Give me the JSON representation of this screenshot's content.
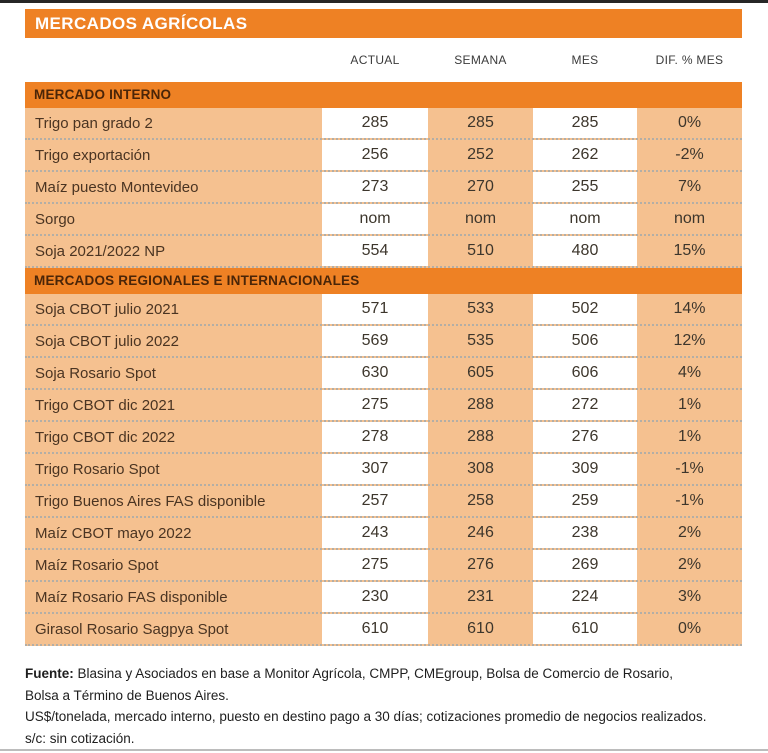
{
  "colors": {
    "orange": "#EE8124",
    "peach": "#F5C190",
    "title_text": "#FFFFFF",
    "section_text": "#4A2508"
  },
  "chart_data": {
    "type": "table",
    "title": "MERCADOS AGRÍCOLAS",
    "columns": [
      "ACTUAL",
      "SEMANA",
      "MES",
      "DIF. % MES"
    ],
    "sections": [
      {
        "header": "MERCADO INTERNO",
        "rows": [
          {
            "label": "Trigo pan grado 2",
            "actual": "285",
            "semana": "285",
            "mes": "285",
            "dif": "0%"
          },
          {
            "label": "Trigo exportación",
            "actual": "256",
            "semana": "252",
            "mes": "262",
            "dif": "-2%"
          },
          {
            "label": "Maíz puesto Montevideo",
            "actual": "273",
            "semana": "270",
            "mes": "255",
            "dif": "7%"
          },
          {
            "label": "Sorgo",
            "actual": "nom",
            "semana": "nom",
            "mes": "nom",
            "dif": "nom"
          },
          {
            "label": "Soja 2021/2022 NP",
            "actual": "554",
            "semana": "510",
            "mes": "480",
            "dif": "15%"
          }
        ]
      },
      {
        "header": "MERCADOS REGIONALES E INTERNACIONALES",
        "rows": [
          {
            "label": "Soja CBOT julio 2021",
            "actual": "571",
            "semana": "533",
            "mes": "502",
            "dif": "14%"
          },
          {
            "label": "Soja CBOT julio 2022",
            "actual": "569",
            "semana": "535",
            "mes": "506",
            "dif": "12%"
          },
          {
            "label": "Soja Rosario Spot",
            "actual": "630",
            "semana": "605",
            "mes": "606",
            "dif": "4%"
          },
          {
            "label": "Trigo CBOT dic 2021",
            "actual": "275",
            "semana": "288",
            "mes": "272",
            "dif": "1%"
          },
          {
            "label": "Trigo CBOT dic 2022",
            "actual": "278",
            "semana": "288",
            "mes": "276",
            "dif": "1%"
          },
          {
            "label": "Trigo Rosario Spot",
            "actual": "307",
            "semana": "308",
            "mes": "309",
            "dif": "-1%"
          },
          {
            "label": "Trigo Buenos Aires FAS disponible",
            "actual": "257",
            "semana": "258",
            "mes": "259",
            "dif": "-1%"
          },
          {
            "label": "Maíz CBOT mayo 2022",
            "actual": "243",
            "semana": "246",
            "mes": "238",
            "dif": "2%"
          },
          {
            "label": "Maíz Rosario Spot",
            "actual": "275",
            "semana": "276",
            "mes": "269",
            "dif": "2%"
          },
          {
            "label": "Maíz Rosario FAS disponible",
            "actual": "230",
            "semana": "231",
            "mes": "224",
            "dif": "3%"
          },
          {
            "label": "Girasol Rosario Sagpya Spot",
            "actual": "610",
            "semana": "610",
            "mes": "610",
            "dif": "0%"
          }
        ]
      }
    ]
  },
  "footer": {
    "fuente_label": "Fuente:",
    "fuente_text": " Blasina y Asociados en base a Monitor Agrícola, CMPP, CMEgroup, Bolsa de Comercio de Rosario, Bolsa a Término de Buenos Aires.",
    "note1": "US$/tonelada, mercado interno, puesto en destino pago a 30 días; cotizaciones promedio de negocios realizados.",
    "note2": "s/c: sin cotización."
  }
}
